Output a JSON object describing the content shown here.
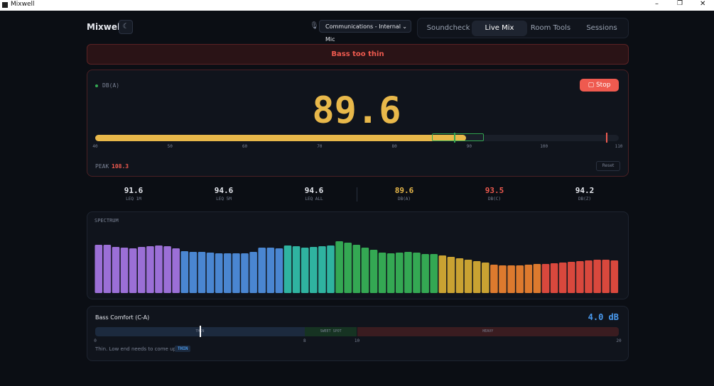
{
  "window": {
    "title": "Mixwell"
  },
  "header": {
    "logo": "Mixwell",
    "device": "Communications - Internal Mic",
    "tabs": [
      "Soundcheck",
      "Live Mix",
      "Room Tools",
      "Sessions"
    ],
    "active_tab": 1
  },
  "alert": "Bass too thin",
  "meter": {
    "label": "DB(A)",
    "value_label": "89.6",
    "value": 89.6,
    "color": "#e8b84a",
    "stop": "Stop",
    "lim": [
      40,
      110
    ],
    "ticks": [
      40,
      50,
      60,
      70,
      80,
      90,
      100,
      110
    ],
    "target": [
      85,
      92
    ],
    "target_line": 88,
    "peak_label": "PEAK",
    "peak": 108.3,
    "reset": "Reset"
  },
  "stats": [
    {
      "value": "91.6",
      "label": "LEQ 1M",
      "color": "#e6e8ee"
    },
    {
      "value": "94.6",
      "label": "LEQ 5M",
      "color": "#e6e8ee"
    },
    {
      "value": "94.6",
      "label": "LEQ ALL",
      "color": "#e6e8ee"
    },
    {
      "value": "89.6",
      "label": "DB(A)",
      "color": "#e8b84a"
    },
    {
      "value": "93.5",
      "label": "DB(C)",
      "color": "#ef5a4f"
    },
    {
      "value": "94.2",
      "label": "DB(Z)",
      "color": "#e6e8ee"
    }
  ],
  "spectrum": {
    "title": "SPECTRUM",
    "groups": [
      {
        "color": "#9b6fd6",
        "values": [
          68,
          68,
          65,
          64,
          63,
          65,
          66,
          67,
          66,
          63
        ]
      },
      {
        "color": "#4a86d1",
        "values": [
          59,
          58,
          58,
          57,
          56,
          56,
          56,
          56,
          58,
          64,
          64,
          63
        ]
      },
      {
        "color": "#2fb3a0",
        "values": [
          67,
          66,
          64,
          65,
          66,
          67
        ]
      },
      {
        "color": "#34a853",
        "values": [
          73,
          71,
          68,
          64,
          61,
          57,
          56,
          57,
          58,
          57,
          55,
          55
        ]
      },
      {
        "color": "#c9a232",
        "values": [
          53,
          51,
          49,
          47,
          45,
          43
        ]
      },
      {
        "color": "#dd7a2e",
        "values": [
          40,
          39,
          39,
          39,
          40,
          41
        ]
      },
      {
        "color": "#d9483d",
        "values": [
          41,
          42,
          43,
          44,
          45,
          46,
          47,
          47,
          46
        ]
      }
    ]
  },
  "bass": {
    "title": "Bass Comfort (C-A)",
    "value_label": "4.0 dB",
    "value": 4.0,
    "lim": [
      0,
      20
    ],
    "ticks": [
      0,
      8,
      10,
      20
    ],
    "zones": [
      {
        "label": "THIN",
        "range": [
          0,
          8
        ],
        "color": "#1c2a3e"
      },
      {
        "label": "SWEET SPOT",
        "range": [
          8,
          10
        ],
        "color": "#163322"
      },
      {
        "label": "HEAVY",
        "range": [
          10,
          20
        ],
        "color": "#3a1c20"
      }
    ],
    "message": "Thin. Low end needs to come up.",
    "badge": "THIN"
  }
}
